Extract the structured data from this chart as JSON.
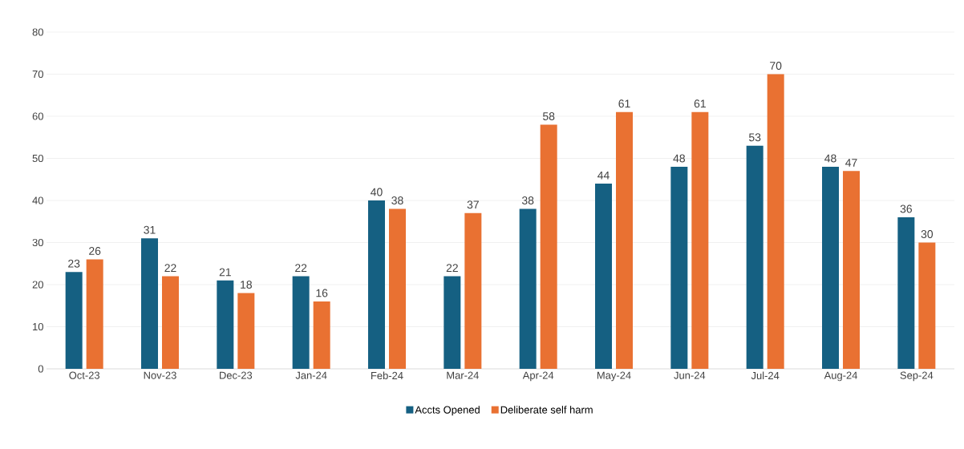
{
  "chart_data": {
    "type": "bar",
    "categories": [
      "Oct-23",
      "Nov-23",
      "Dec-23",
      "Jan-24",
      "Feb-24",
      "Mar-24",
      "Apr-24",
      "May-24",
      "Jun-24",
      "Jul-24",
      "Aug-24",
      "Sep-24"
    ],
    "series": [
      {
        "name": "Accts Opened",
        "color": "#156082",
        "values": [
          23,
          31,
          21,
          22,
          40,
          22,
          38,
          44,
          48,
          53,
          48,
          36
        ]
      },
      {
        "name": "Deliberate self harm",
        "color": "#e97132",
        "values": [
          26,
          22,
          18,
          16,
          38,
          37,
          58,
          61,
          61,
          70,
          47,
          30
        ]
      }
    ],
    "ylim": [
      0,
      80
    ],
    "yticks": [
      0,
      10,
      20,
      30,
      40,
      50,
      60,
      70,
      80
    ],
    "grid": "y",
    "legend": "bottom",
    "data_labels": true
  }
}
